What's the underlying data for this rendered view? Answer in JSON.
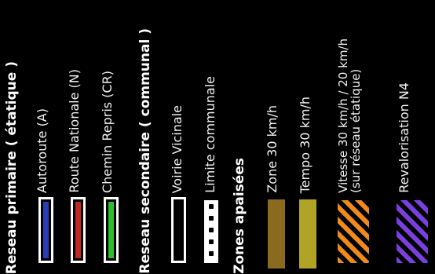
{
  "legend": {
    "primary": {
      "heading": "Reseau primaire ( étatique )",
      "items": [
        {
          "label": "Autoroute (A)",
          "color": "#2a3fb4"
        },
        {
          "label": "Route Nationale (N)",
          "color": "#c1281e"
        },
        {
          "label": "Chemin Repris (CR)",
          "color": "#2fbe2b"
        }
      ]
    },
    "secondary": {
      "heading": "Reseau secondaire ( communal )",
      "items": [
        {
          "label": "Voirie Vicinale",
          "color": "#000000"
        },
        {
          "label": "Limite communale"
        }
      ]
    },
    "zones": {
      "heading": "Zones apaisées",
      "items": [
        {
          "label": "Zone 30 km/h",
          "color": "#8a6a1e"
        },
        {
          "label": "Tempo 30 km/h",
          "color": "#b0a426"
        },
        {
          "label_line1": "Vitesse 30 km/h / 20 km/h",
          "label_line2": "(sur réseau étatique)",
          "color": "#f08a1a"
        },
        {
          "label": "Revalorisation N4",
          "color": "#7a3fe0"
        }
      ]
    }
  }
}
